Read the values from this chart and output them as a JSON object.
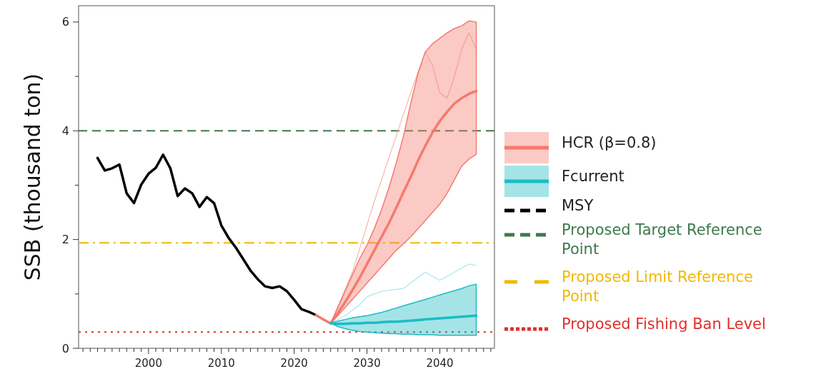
{
  "chart_data": {
    "type": "line",
    "ylabel": "SSB (thousand ton)",
    "xlim": [
      1990.4,
      2047.5
    ],
    "ylim": [
      0,
      6.3
    ],
    "xticks": [
      {
        "value": 1991,
        "label": null
      },
      {
        "value": 1992,
        "label": null
      },
      {
        "value": 1993,
        "label": null
      },
      {
        "value": 1994,
        "label": null
      },
      {
        "value": 1995,
        "label": null
      },
      {
        "value": 1996,
        "label": null
      },
      {
        "value": 1997,
        "label": null
      },
      {
        "value": 1998,
        "label": null
      },
      {
        "value": 1999,
        "label": null
      },
      2000,
      {
        "value": 2001,
        "label": null
      },
      {
        "value": 2002,
        "label": null
      },
      {
        "value": 2003,
        "label": null
      },
      {
        "value": 2004,
        "label": null
      },
      {
        "value": 2005,
        "label": null
      },
      {
        "value": 2006,
        "label": null
      },
      {
        "value": 2007,
        "label": null
      },
      {
        "value": 2008,
        "label": null
      },
      {
        "value": 2009,
        "label": null
      },
      2010,
      {
        "value": 2011,
        "label": null
      },
      {
        "value": 2012,
        "label": null
      },
      {
        "value": 2013,
        "label": null
      },
      {
        "value": 2014,
        "label": null
      },
      {
        "value": 2015,
        "label": null
      },
      {
        "value": 2016,
        "label": null
      },
      {
        "value": 2017,
        "label": null
      },
      {
        "value": 2018,
        "label": null
      },
      {
        "value": 2019,
        "label": null
      },
      2020,
      {
        "value": 2021,
        "label": null
      },
      {
        "value": 2022,
        "label": null
      },
      {
        "value": 2023,
        "label": null
      },
      {
        "value": 2024,
        "label": null
      },
      {
        "value": 2025,
        "label": null
      },
      {
        "value": 2026,
        "label": null
      },
      {
        "value": 2027,
        "label": null
      },
      {
        "value": 2028,
        "label": null
      },
      {
        "value": 2029,
        "label": null
      },
      2030,
      {
        "value": 2031,
        "label": null
      },
      {
        "value": 2032,
        "label": null
      },
      {
        "value": 2033,
        "label": null
      },
      {
        "value": 2034,
        "label": null
      },
      {
        "value": 2035,
        "label": null
      },
      {
        "value": 2036,
        "label": null
      },
      {
        "value": 2037,
        "label": null
      },
      {
        "value": 2038,
        "label": null
      },
      {
        "value": 2039,
        "label": null
      },
      2040,
      {
        "value": 2041,
        "label": null
      },
      {
        "value": 2042,
        "label": null
      },
      {
        "value": 2043,
        "label": null
      },
      {
        "value": 2044,
        "label": null
      },
      {
        "value": 2045,
        "label": null
      },
      {
        "value": 2046,
        "label": null
      },
      {
        "value": 2047,
        "label": null
      }
    ],
    "yticks": [
      0,
      {
        "value": 1,
        "label": null
      },
      2,
      {
        "value": 3,
        "label": null
      },
      4,
      {
        "value": 5,
        "label": null
      },
      6
    ],
    "grid": false,
    "legend": "right",
    "series": [
      {
        "color": "#000000",
        "x": [
          1993,
          1994,
          1995,
          1996,
          1997,
          1998,
          1999,
          2000,
          2001,
          2002,
          2003,
          2004,
          2005,
          2006,
          2007,
          2008,
          2009,
          2010,
          2011,
          2012,
          2013,
          2014,
          2015,
          2016,
          2017,
          2018,
          2019,
          2020,
          2021,
          2022,
          2023
        ],
        "values": [
          3.5,
          3.27,
          3.31,
          3.38,
          2.85,
          2.67,
          3.01,
          3.21,
          3.32,
          3.56,
          3.31,
          2.8,
          2.94,
          2.85,
          2.6,
          2.78,
          2.67,
          2.26,
          2.03,
          1.85,
          1.64,
          1.43,
          1.27,
          1.14,
          1.11,
          1.14,
          1.05,
          0.89,
          0.72,
          0.67,
          0.61
        ]
      },
      {
        "color": "#f9b4ae",
        "x": [
          2025,
          2028,
          2031,
          2034,
          2036,
          2038,
          2039,
          2040,
          2041,
          2042,
          2043,
          2044,
          2045
        ],
        "values": [
          0.46,
          1.4,
          2.7,
          3.9,
          4.7,
          5.45,
          5.2,
          4.7,
          4.6,
          5.0,
          5.5,
          5.8,
          5.5
        ]
      },
      {
        "color": "#a8e8ec",
        "x": [
          2025,
          2027,
          2029,
          2030,
          2032,
          2035,
          2036,
          2038,
          2040,
          2042,
          2044,
          2045
        ],
        "values": [
          0.46,
          0.6,
          0.8,
          0.95,
          1.05,
          1.1,
          1.2,
          1.4,
          1.25,
          1.4,
          1.55,
          1.52
        ]
      },
      {
        "name": "HCR (β=0.8)",
        "color": "#f47a6e",
        "x": [
          2023,
          2024,
          2025,
          2026,
          2027,
          2028,
          2029,
          2030,
          2031,
          2032,
          2033,
          2034,
          2035,
          2036,
          2037,
          2038,
          2039,
          2040,
          2041,
          2042,
          2043,
          2044,
          2045
        ],
        "values": [
          0.61,
          0.53,
          0.46,
          0.65,
          0.85,
          1.07,
          1.3,
          1.55,
          1.8,
          2.05,
          2.3,
          2.58,
          2.87,
          3.15,
          3.45,
          3.72,
          3.97,
          4.18,
          4.35,
          4.5,
          4.6,
          4.68,
          4.73
        ],
        "lower": [
          0.61,
          0.53,
          0.46,
          0.6,
          0.75,
          0.9,
          1.05,
          1.2,
          1.35,
          1.5,
          1.65,
          1.8,
          1.92,
          2.05,
          2.2,
          2.35,
          2.5,
          2.65,
          2.85,
          3.1,
          3.35,
          3.48,
          3.57
        ],
        "upper": [
          0.61,
          0.53,
          0.46,
          0.75,
          1.05,
          1.35,
          1.65,
          1.9,
          2.2,
          2.55,
          2.95,
          3.4,
          3.9,
          4.5,
          5.05,
          5.45,
          5.6,
          5.7,
          5.8,
          5.88,
          5.93,
          6.02,
          6.0
        ]
      },
      {
        "name": "Fcurrent",
        "color": "#1bbcc4",
        "x": [
          2025,
          2026,
          2027,
          2028,
          2029,
          2030,
          2031,
          2032,
          2033,
          2034,
          2035,
          2036,
          2037,
          2038,
          2039,
          2040,
          2041,
          2042,
          2043,
          2044,
          2045
        ],
        "values": [
          0.46,
          0.45,
          0.45,
          0.46,
          0.46,
          0.47,
          0.47,
          0.48,
          0.49,
          0.49,
          0.5,
          0.51,
          0.52,
          0.53,
          0.54,
          0.55,
          0.56,
          0.57,
          0.58,
          0.59,
          0.6
        ],
        "lower": [
          0.46,
          0.4,
          0.36,
          0.33,
          0.31,
          0.3,
          0.29,
          0.28,
          0.27,
          0.27,
          0.26,
          0.26,
          0.25,
          0.25,
          0.25,
          0.24,
          0.24,
          0.24,
          0.24,
          0.24,
          0.24
        ],
        "upper": [
          0.46,
          0.5,
          0.53,
          0.56,
          0.58,
          0.6,
          0.63,
          0.66,
          0.7,
          0.74,
          0.78,
          0.82,
          0.86,
          0.9,
          0.94,
          0.98,
          1.02,
          1.06,
          1.1,
          1.15,
          1.18
        ]
      },
      {
        "name": "MSY",
        "color": "#000000",
        "line_style": "dashed"
      }
    ],
    "ref_lines": [
      {
        "axis": "y",
        "value": 4.0,
        "label": "Proposed Target Reference Point",
        "color": "#3c7a4c",
        "line_style": "dashed"
      },
      {
        "axis": "y",
        "value": 1.94,
        "label": "Proposed Limit Reference Point",
        "color": "#f2b800",
        "line_style": "dashdot"
      },
      {
        "axis": "y",
        "value": 0.3,
        "label": "Proposed Fishing Ban Level",
        "color": "#e0302a",
        "line_style": "dotted"
      }
    ]
  }
}
